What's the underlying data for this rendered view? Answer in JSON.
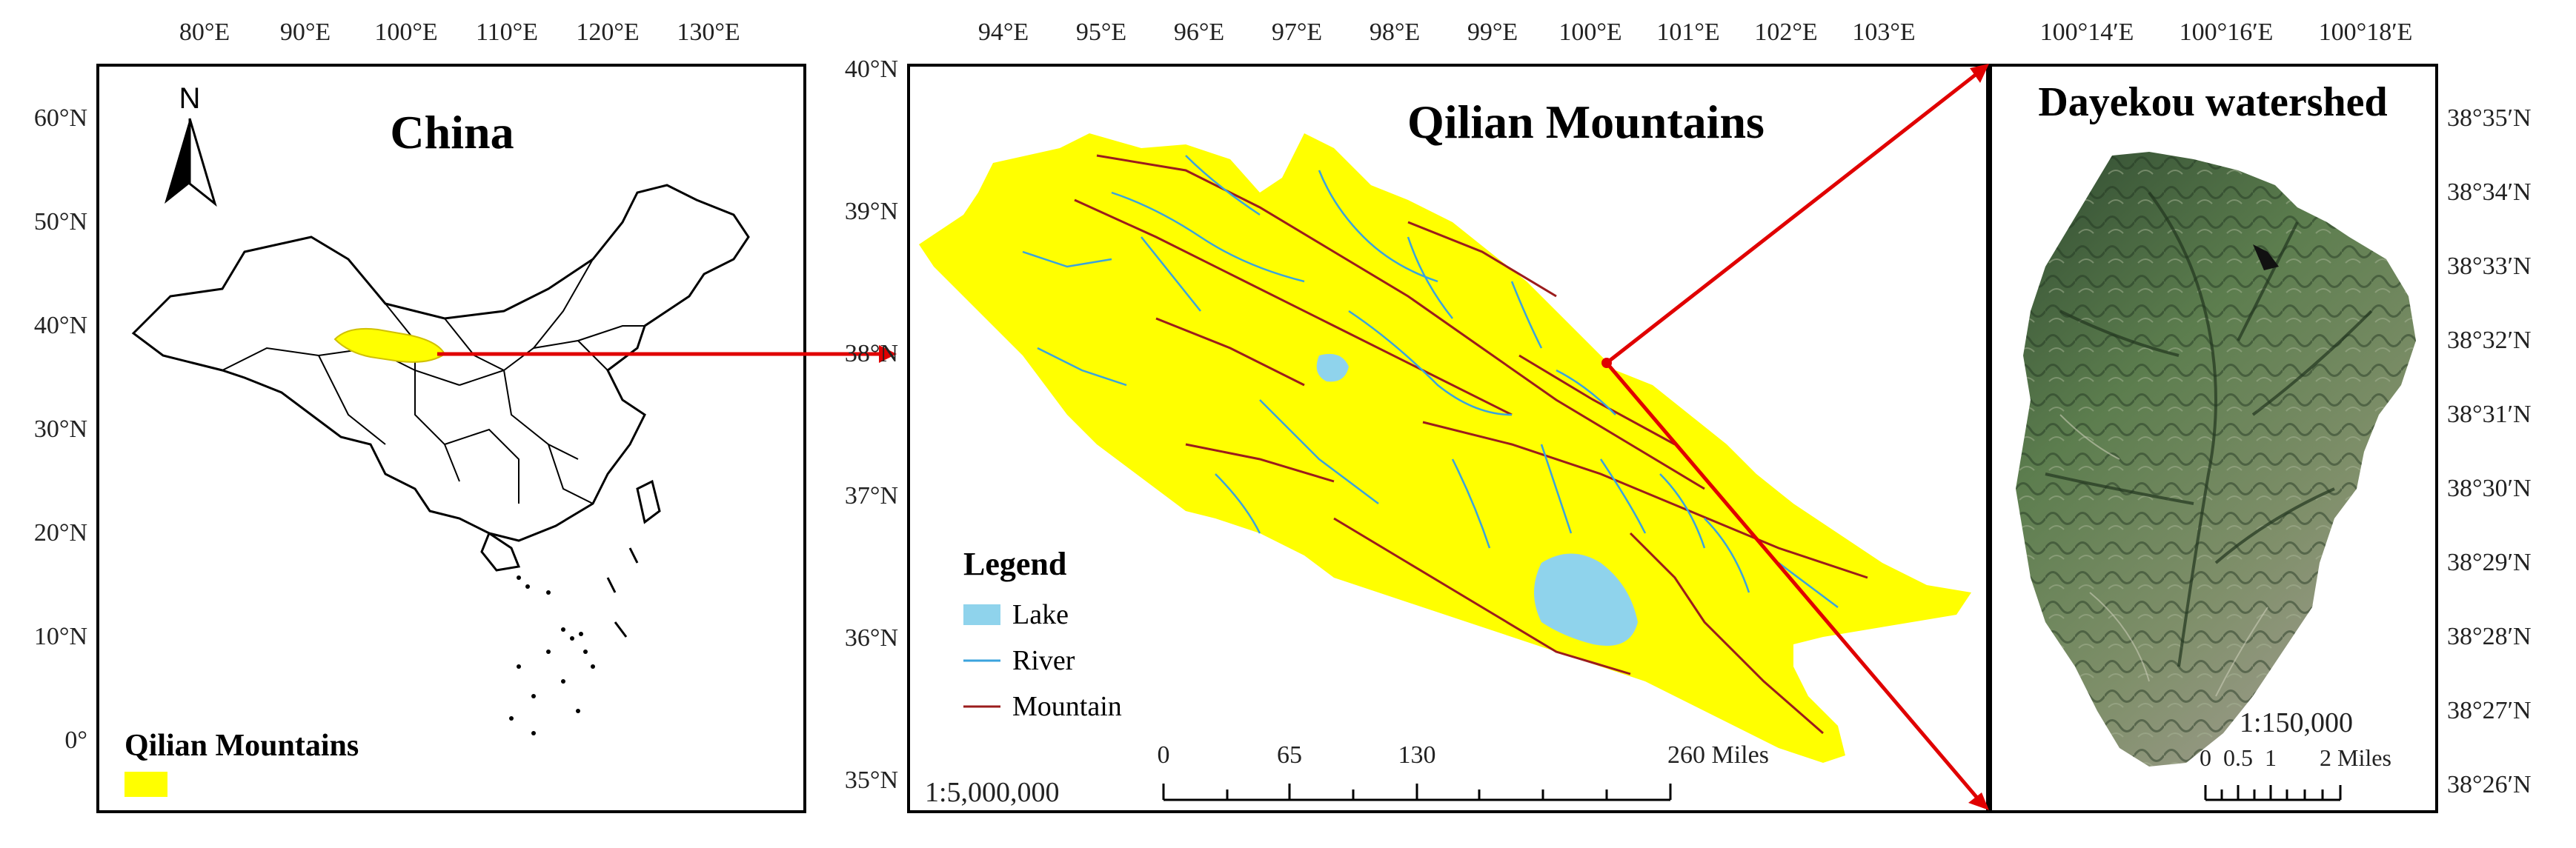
{
  "colors": {
    "qilian_fill": "#ffff00",
    "lake": "#8fd3ec",
    "river": "#3aa3dd",
    "mountain": "#9b1c1c",
    "pointer": "#e00000",
    "satellite_dark": "#3d5b3a",
    "satellite_mid": "#6a8c5a"
  },
  "icons": {
    "north_arrow": "north-arrow-icon"
  },
  "panel_china": {
    "title": "China",
    "north_label": "N",
    "lon_ticks": [
      "80°E",
      "90°E",
      "100°E",
      "110°E",
      "120°E",
      "130°E"
    ],
    "lat_ticks": [
      "60°N",
      "50°N",
      "40°N",
      "30°N",
      "20°N",
      "10°N",
      "0°"
    ],
    "legend_label": "Qilian Mountains"
  },
  "panel_qilian": {
    "title": "Qilian Mountains",
    "lon_ticks": [
      "94°E",
      "95°E",
      "96°E",
      "97°E",
      "98°E",
      "99°E",
      "100°E",
      "101°E",
      "102°E",
      "103°E"
    ],
    "lat_ticks": [
      "40°N",
      "39°N",
      "38°N",
      "37°N",
      "36°N",
      "35°N"
    ],
    "legend": {
      "title": "Legend",
      "items": [
        "Lake",
        "River",
        "Mountain"
      ]
    },
    "scale_ratio": "1:5,000,000",
    "scalebar_labels": [
      "0",
      "65",
      "130",
      "260 Miles"
    ]
  },
  "panel_dayekou": {
    "title": "Dayekou watershed",
    "lon_ticks": [
      "100°14′E",
      "100°16′E",
      "100°18′E"
    ],
    "lat_ticks": [
      "38°35′N",
      "38°34′N",
      "38°33′N",
      "38°32′N",
      "38°31′N",
      "38°30′N",
      "38°29′N",
      "38°28′N",
      "38°27′N",
      "38°26′N"
    ],
    "scale_ratio": "1:150,000",
    "scalebar_labels": [
      "0",
      "0.5",
      "1",
      "2 Miles"
    ]
  }
}
